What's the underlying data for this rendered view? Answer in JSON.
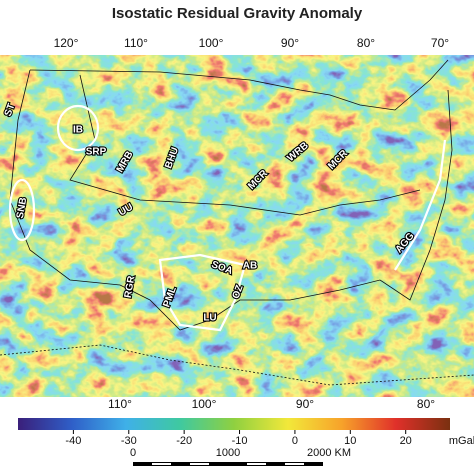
{
  "title": "Isostatic Residual Gravity Anomaly",
  "top_longitudes": [
    "120°",
    "110°",
    "100°",
    "90°",
    "80°",
    "70°"
  ],
  "bottom_longitudes": [
    "110°",
    "100°",
    "90°",
    "80°"
  ],
  "region_labels": [
    "ST",
    "IB",
    "SRP",
    "MRB",
    "BHU",
    "SNB",
    "UU",
    "RGR",
    "PML",
    "SOA",
    "AB",
    "OZ",
    "LU",
    "MCR",
    "WRB",
    "MCR",
    "AGG"
  ],
  "colorbar": {
    "ticks": [
      -40,
      -30,
      -20,
      -10,
      0,
      10,
      20
    ],
    "unit": "mGal",
    "limits": [
      -50,
      28
    ],
    "colors": [
      "#3a1f7a",
      "#2f5fc8",
      "#3fb0e8",
      "#3fc9a0",
      "#8fd040",
      "#f2e83a",
      "#f7a22a",
      "#e0302a",
      "#7a3010"
    ]
  },
  "scale_bar": {
    "labels": [
      "0",
      "1000",
      "2000 KM"
    ]
  }
}
